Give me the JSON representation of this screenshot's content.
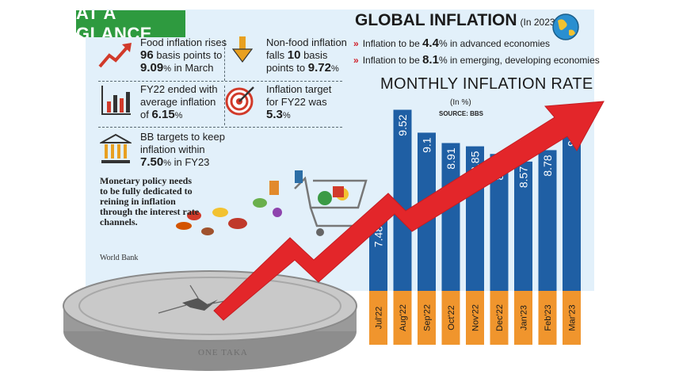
{
  "glance": {
    "tag": "AT A GLANCE",
    "facts": [
      {
        "pre": "Food inflation rises",
        "big1": "96",
        "mid": "basis points to",
        "big2": "9.09",
        "unit": "%",
        "post": "in March"
      },
      {
        "pre": "Non-food inflation",
        "mid1": "falls",
        "big1": "10",
        "mid2": "basis",
        "mid3": "points to",
        "big2": "9.72",
        "unit": "%"
      },
      {
        "pre": "FY22 ended with",
        "mid": "average inflation",
        "mid2": "of",
        "big": "6.15",
        "unit": "%"
      },
      {
        "pre": "Inflation target",
        "mid": "for FY22 was",
        "big": "5.3",
        "unit": "%"
      },
      {
        "pre": "BB targets to keep",
        "mid": "inflation within",
        "big": "7.50",
        "unit": "%",
        "post": "in FY23"
      }
    ]
  },
  "quote": {
    "text": "Monetary policy needs to be fully dedicated to reining in inflation through the interest rate channels.",
    "source": "World Bank"
  },
  "global_inflation": {
    "title": "GLOBAL INFLATION",
    "year": "(In 2023)",
    "lines": [
      {
        "pre": "Inflation to be",
        "value": "4.4",
        "unit": "%",
        "post": "in advanced economies"
      },
      {
        "pre": "Inflation to be",
        "value": "8.1",
        "unit": "%",
        "post": "in emerging, developing economies"
      }
    ]
  },
  "coin_text": "ONE TAKA",
  "colors": {
    "bar": "#1f5fa4",
    "label_box": "#f0952d",
    "arrow": "#e3262a",
    "panel": "#e2f0fa",
    "tag": "#2e9a3f",
    "icon_red": "#d13a2a",
    "icon_orange": "#e8a020"
  },
  "chart_data": {
    "type": "bar",
    "title": "MONTHLY INFLATION RATE",
    "unit_label": "(In %)",
    "source": "SOURCE: BBS",
    "categories": [
      "Jul'22",
      "Aug'22",
      "Sep'22",
      "Oct'22",
      "Nov'22",
      "Dec'22",
      "Jan'23",
      "Feb'23",
      "Mar'23"
    ],
    "values": [
      7.48,
      9.52,
      9.1,
      8.91,
      8.85,
      8.71,
      8.57,
      8.78,
      9.33
    ],
    "value_labels": [
      "7.48",
      "9.52",
      "9.1",
      "8.91",
      "8.85",
      "8.71",
      "8.57",
      "8.78",
      "9.33"
    ],
    "ylim": [
      6.2,
      9.6
    ],
    "data_labels": true,
    "grid": false
  }
}
